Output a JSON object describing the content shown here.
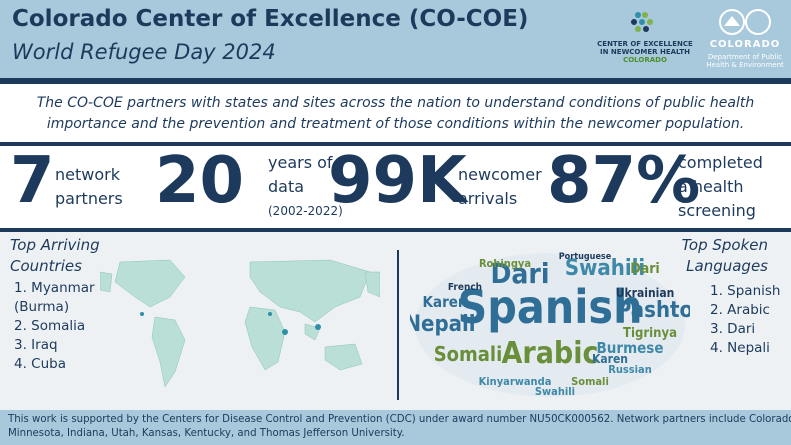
{
  "header": {
    "title": "Colorado Center of Excellence (CO-COE)",
    "subtitle": "World Refugee Day 2024",
    "logo_left": [
      "CENTER OF EXCELLENCE",
      "IN NEWCOMER HEALTH",
      "COLORADO"
    ],
    "logo_right": {
      "name": "COLORADO",
      "department": [
        "Department of Public",
        "Health & Environment"
      ]
    }
  },
  "intro": [
    "The CO-COE partners with states and sites across the nation to understand conditions of public health",
    "importance and the prevention and treatment of those conditions within the newcomer population."
  ],
  "stats": [
    {
      "number": "7",
      "label": [
        "network",
        "partners"
      ]
    },
    {
      "number": "20",
      "label": [
        "years of",
        "data",
        "(2002-2022)"
      ]
    },
    {
      "number": "99K",
      "label": [
        "newcomer",
        "arrivals"
      ]
    },
    {
      "number": "87%",
      "label": [
        "completed",
        "a health",
        "screening"
      ]
    }
  ],
  "countries": {
    "title": [
      "Top Arriving",
      "Countries"
    ],
    "items": [
      "1. Myanmar",
      "(Burma)",
      "2. Somalia",
      "3. Iraq",
      "4. Cuba"
    ]
  },
  "languages": {
    "title": [
      "Top Spoken",
      "Languages"
    ],
    "items": [
      "1. Spanish",
      "2. Arabic",
      "3. Dari",
      "4. Nepali"
    ]
  },
  "word_cloud": {
    "words": [
      "Spanish",
      "Arabic",
      "Dari",
      "Swahili",
      "Nepali",
      "Somali",
      "Pashto",
      "Karen",
      "Burmese",
      "Tigrinya",
      "Ukrainian",
      "Rohingya",
      "French",
      "Kinyarwanda",
      "Russian",
      "Portuguese",
      "Karen",
      "Dari",
      "Somali",
      "Swahili"
    ]
  },
  "footer": [
    "This work is supported by the Centers for Disease Control and Prevention (CDC) under award number NU50CK000562. Network partners include Colorado,",
    "Minnesota, Indiana, Utah, Kansas, Kentucky, and Thomas Jefferson University."
  ]
}
